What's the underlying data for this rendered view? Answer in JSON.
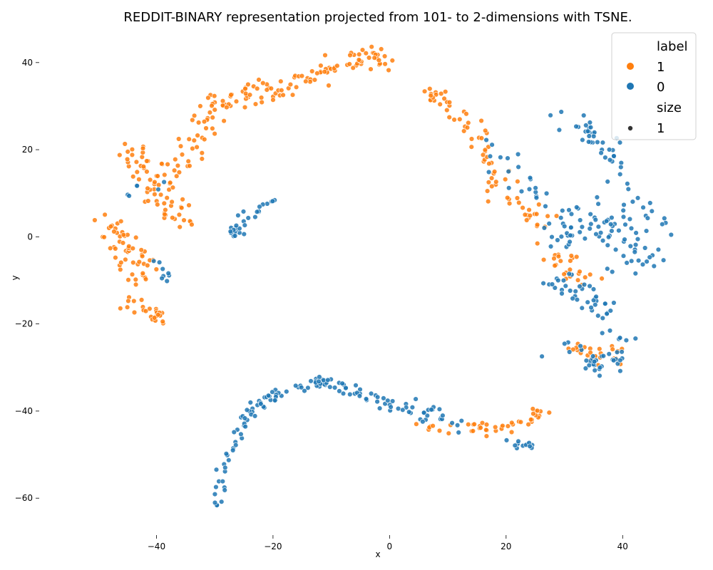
{
  "chart_data": {
    "type": "scatter",
    "title": "REDDIT-BINARY representation projected from 101- to 2-dimensions with TSNE.",
    "xlabel": "x",
    "ylabel": "y",
    "xlim": [
      -54,
      50
    ],
    "ylim": [
      -67,
      47
    ],
    "xticks": [
      -40,
      -20,
      0,
      20,
      40
    ],
    "yticks": [
      -60,
      -40,
      -20,
      0,
      20,
      40
    ],
    "grid": false,
    "legend": {
      "placement": "top-right",
      "title_label": "label",
      "entries": [
        {
          "name": "1",
          "color": "#ff7f0e"
        },
        {
          "name": "0",
          "color": "#1f77b4"
        }
      ],
      "title_size": "size",
      "size_entries": [
        "1"
      ]
    },
    "series": [
      {
        "name": "1",
        "color": "#ff7f0e",
        "clusters": [
          {
            "path": [
              [
                -46,
                22
              ],
              [
                -42,
                16
              ],
              [
                -38,
                8
              ],
              [
                -36,
                3
              ]
            ],
            "count": 60,
            "spread": 3.2
          },
          {
            "path": [
              [
                -50,
                4
              ],
              [
                -46,
                0
              ],
              [
                -44,
                -6
              ],
              [
                -42,
                -10
              ]
            ],
            "count": 55,
            "spread": 2.8
          },
          {
            "path": [
              [
                -45,
                -14
              ],
              [
                -41,
                -17
              ],
              [
                -39,
                -19
              ]
            ],
            "count": 30,
            "spread": 1.8
          },
          {
            "path": [
              [
                -38,
                12
              ],
              [
                -34,
                20
              ],
              [
                -30,
                28
              ],
              [
                -26,
                32
              ],
              [
                -20,
                34
              ]
            ],
            "count": 80,
            "spread": 2.6
          },
          {
            "path": [
              [
                -20,
                34
              ],
              [
                -16,
                36
              ],
              [
                -12,
                38
              ],
              [
                -8,
                40
              ],
              [
                -4,
                42
              ],
              [
                0,
                40
              ]
            ],
            "count": 70,
            "spread": 2.0
          },
          {
            "path": [
              [
                6,
                34
              ],
              [
                10,
                30
              ],
              [
                14,
                24
              ],
              [
                16,
                18
              ]
            ],
            "count": 40,
            "spread": 2.2
          },
          {
            "path": [
              [
                16,
                18
              ],
              [
                20,
                12
              ],
              [
                24,
                6
              ],
              [
                26,
                2
              ]
            ],
            "count": 35,
            "spread": 2.6
          },
          {
            "path": [
              [
                26,
                -2
              ],
              [
                30,
                -6
              ],
              [
                34,
                -10
              ]
            ],
            "count": 25,
            "spread": 2.4
          },
          {
            "path": [
              [
                32,
                -26
              ],
              [
                36,
                -28
              ],
              [
                40,
                -26
              ]
            ],
            "count": 25,
            "spread": 2.2
          },
          {
            "path": [
              [
                6,
                -44
              ],
              [
                14,
                -44
              ],
              [
                20,
                -44
              ],
              [
                26,
                -40
              ]
            ],
            "count": 45,
            "spread": 1.6
          }
        ]
      },
      {
        "name": "0",
        "color": "#1f77b4",
        "clusters": [
          {
            "path": [
              [
                -30,
                -62
              ],
              [
                -28,
                -52
              ],
              [
                -26,
                -45
              ],
              [
                -24,
                -40
              ],
              [
                -20,
                -36
              ],
              [
                -14,
                -34
              ],
              [
                -10,
                -33
              ]
            ],
            "count": 85,
            "spread": 1.3
          },
          {
            "path": [
              [
                -10,
                -34
              ],
              [
                -5,
                -36
              ],
              [
                0,
                -38
              ],
              [
                6,
                -40
              ],
              [
                12,
                -43
              ]
            ],
            "count": 55,
            "spread": 1.6
          },
          {
            "path": [
              [
                20,
                -48
              ],
              [
                24,
                -48
              ]
            ],
            "count": 12,
            "spread": 1.0
          },
          {
            "path": [
              [
                -27,
                -1
              ],
              [
                -26,
                2
              ],
              [
                -24,
                6
              ],
              [
                -20,
                8
              ]
            ],
            "count": 28,
            "spread": 1.3
          },
          {
            "path": [
              [
                30,
                28
              ],
              [
                34,
                24
              ],
              [
                38,
                20
              ],
              [
                42,
                10
              ],
              [
                46,
                2
              ]
            ],
            "count": 55,
            "spread": 2.6
          },
          {
            "path": [
              [
                28,
                0
              ],
              [
                34,
                4
              ],
              [
                40,
                0
              ],
              [
                44,
                -6
              ]
            ],
            "count": 80,
            "spread": 4.2
          },
          {
            "path": [
              [
                28,
                -10
              ],
              [
                34,
                -14
              ],
              [
                38,
                -18
              ]
            ],
            "count": 40,
            "spread": 3.0
          },
          {
            "path": [
              [
                30,
                -24
              ],
              [
                34,
                -30
              ],
              [
                38,
                -28
              ],
              [
                40,
                -22
              ]
            ],
            "count": 40,
            "spread": 2.8
          },
          {
            "path": [
              [
                18,
                20
              ],
              [
                22,
                14
              ],
              [
                26,
                8
              ]
            ],
            "count": 20,
            "spread": 2.4
          },
          {
            "path": [
              [
                -40,
                -6
              ],
              [
                -38,
                -10
              ]
            ],
            "count": 8,
            "spread": 1.5
          },
          {
            "path": [
              [
                -44,
                10
              ],
              [
                -40,
                14
              ]
            ],
            "count": 6,
            "spread": 2.0
          }
        ]
      }
    ]
  }
}
